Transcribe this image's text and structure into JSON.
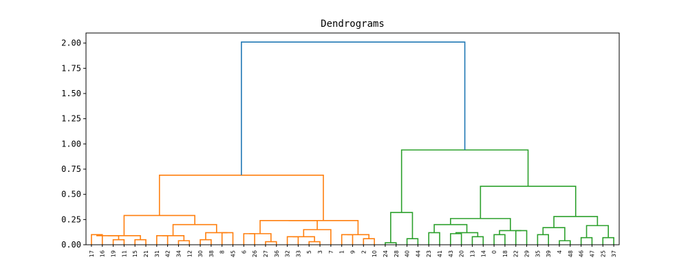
{
  "chart_data": {
    "type": "dendrogram",
    "title": "Dendrograms",
    "xlabel": "",
    "ylabel": "",
    "ylim": [
      0,
      2.1
    ],
    "grid": false,
    "yticks": [
      "0.00",
      "0.25",
      "0.50",
      "0.75",
      "1.00",
      "1.25",
      "1.50",
      "1.75",
      "2.00"
    ],
    "ytick_values": [
      0,
      0.25,
      0.5,
      0.75,
      1.0,
      1.25,
      1.5,
      1.75,
      2.0
    ],
    "leaves": [
      "17",
      "16",
      "19",
      "11",
      "15",
      "21",
      "31",
      "42",
      "34",
      "12",
      "30",
      "38",
      "8",
      "45",
      "6",
      "26",
      "27",
      "36",
      "32",
      "33",
      "5",
      "3",
      "7",
      "1",
      "9",
      "2",
      "10",
      "24",
      "28",
      "40",
      "44",
      "23",
      "41",
      "43",
      "20",
      "13",
      "14",
      "0",
      "18",
      "22",
      "29",
      "35",
      "39",
      "4",
      "48",
      "46",
      "47",
      "25",
      "37"
    ],
    "colors": {
      "orange": "#ff7f0e",
      "green": "#2ca02c",
      "blue": "#1f77b4"
    },
    "merges": [
      {
        "left": "17",
        "right": "16",
        "height": 0.1,
        "color": "orange"
      },
      {
        "left": "19",
        "right": "11",
        "height": 0.08,
        "color": "orange"
      },
      {
        "left": "15",
        "right": "21",
        "height": 0.05,
        "color": "orange"
      },
      {
        "left": "31",
        "right": "42",
        "height": 0.09,
        "color": "orange"
      },
      {
        "left": "34",
        "right": "12",
        "height": 0.04,
        "color": "orange"
      },
      {
        "left": "30",
        "right": "38",
        "height": 0.12,
        "color": "orange"
      },
      {
        "left": "8",
        "right": "45",
        "height": 0.06,
        "color": "orange"
      },
      {
        "left": "17+16",
        "right": "19+11",
        "height": 0.09,
        "color": "orange"
      },
      {
        "left": "15+21",
        "right": "31+42",
        "height": 0.2,
        "color": "orange"
      },
      {
        "left": "17+16+19+11",
        "right": "15+21+31+42",
        "height": 0.29,
        "color": "orange"
      },
      {
        "left": "34+12+30+38",
        "right": "8+45",
        "height": 0.24,
        "color": "orange"
      },
      {
        "left": "6",
        "right": "26",
        "height": 0.08,
        "color": "orange"
      },
      {
        "left": "27",
        "right": "36",
        "height": 0.03,
        "color": "orange"
      },
      {
        "left": "32",
        "right": "33",
        "height": 0.1,
        "color": "orange"
      },
      {
        "left": "5",
        "right": "3",
        "height": 0.07,
        "color": "orange"
      },
      {
        "left": "6+26+27+36",
        "right": "32+33+5+3",
        "height": 0.15,
        "color": "orange"
      },
      {
        "left": "7",
        "right": "1",
        "height": 0.17,
        "color": "orange"
      },
      {
        "left": "A",
        "right": "7+1",
        "height": 0.25,
        "color": "orange"
      },
      {
        "left": "cluster-left",
        "right": "cluster-mid",
        "height": 0.49,
        "color": "orange"
      },
      {
        "left": "orange-a",
        "right": "orange-b",
        "height": 0.69,
        "color": "orange"
      },
      {
        "left": "9",
        "right": "2",
        "height": 0.02,
        "color": "green"
      },
      {
        "left": "10",
        "right": "24",
        "height": 0.06,
        "color": "green"
      },
      {
        "left": "9+2",
        "right": "10+24",
        "height": 0.32,
        "color": "green"
      },
      {
        "left": "28",
        "right": "40",
        "height": 0.12,
        "color": "green"
      },
      {
        "left": "44",
        "right": "23",
        "height": 0.11,
        "color": "green"
      },
      {
        "left": "41",
        "right": "43",
        "height": 0.08,
        "color": "green"
      },
      {
        "left": "28+40+44+23",
        "right": "41+43",
        "height": 0.26,
        "color": "green"
      },
      {
        "left": "20",
        "right": "13",
        "height": 0.1,
        "color": "green"
      },
      {
        "left": "14",
        "right": "0",
        "height": 0.14,
        "color": "green"
      },
      {
        "left": "18",
        "right": "22",
        "height": 0.05,
        "color": "green"
      },
      {
        "left": "20+13+14+0",
        "right": "18+22",
        "height": 0.17,
        "color": "green"
      },
      {
        "left": "29",
        "right": "35",
        "height": 0.14,
        "color": "green"
      },
      {
        "left": "39",
        "right": "4",
        "height": 0.07,
        "color": "green"
      },
      {
        "left": "48",
        "right": "46",
        "height": 0.07,
        "color": "green"
      },
      {
        "left": "47",
        "right": "25",
        "height": 0.19,
        "color": "green"
      },
      {
        "left": "green-b1",
        "right": "green-b2",
        "height": 0.34,
        "color": "green"
      },
      {
        "left": "green-a",
        "right": "green-b",
        "height": 0.58,
        "color": "green"
      },
      {
        "left": "green-root-left",
        "right": "green-root-right",
        "height": 0.94,
        "color": "green"
      },
      {
        "left": "orange-root",
        "right": "green-root",
        "height": 2.01,
        "color": "blue"
      }
    ]
  }
}
